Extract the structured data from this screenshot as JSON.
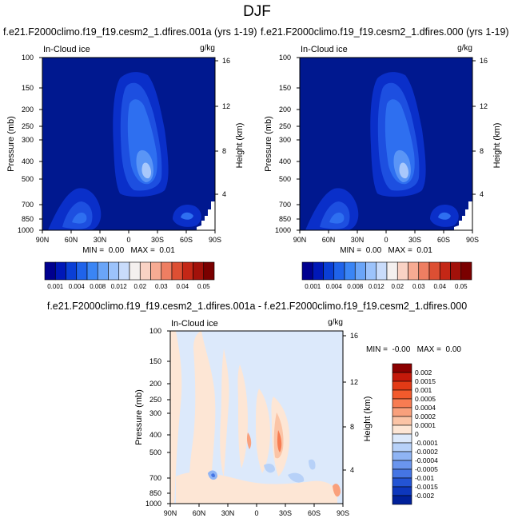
{
  "title": "DJF",
  "panels": [
    {
      "title": "f.e21.F2000climo.f19_f19.cesm2_1.dfires.001a (yrs 1-19)",
      "left_label": "In-Cloud ice",
      "units": "g/kg",
      "stats": "MIN =  0.00   MAX =  0.01"
    },
    {
      "title": "f.e21.F2000climo.f19_f19.cesm2_1.dfires.000 (yrs 1-19)",
      "left_label": "In-Cloud ice",
      "units": "g/kg",
      "stats": "MIN =  0.00   MAX =  0.01"
    },
    {
      "title": "f.e21.F2000climo.f19_f19.cesm2_1.dfires.001a - f.e21.F2000climo.f19_f19.cesm2_1.dfires.000",
      "left_label": "In-Cloud ice",
      "units": "g/kg",
      "stats": "MIN =  -0.00   MAX =  0.00"
    }
  ],
  "chart_data": [
    {
      "type": "heatmap",
      "title": "f.e21.F2000climo.f19_f19.cesm2_1.dfires.001a (yrs 1-19)",
      "ylabel": "Pressure (mb)",
      "ylabel_right": "Height (km)",
      "x_ticks": [
        "90N",
        "60N",
        "30N",
        "0",
        "30S",
        "60S",
        "90S"
      ],
      "y_ticks": [
        "100",
        "150",
        "200",
        "250",
        "300",
        "400",
        "500",
        "700",
        "850",
        "1000"
      ],
      "y_right_ticks": [
        "16",
        "12",
        "8",
        "4"
      ],
      "colorbar": {
        "levels": [
          "0.001",
          "0.004",
          "0.008",
          "0.012",
          "0.02",
          "0.03",
          "0.04",
          "0.05"
        ],
        "colors": [
          "#00008f",
          "#0018b8",
          "#0a3fd6",
          "#1f63ea",
          "#3a85f5",
          "#6aa5f8",
          "#9cc3fb",
          "#c9dcfb",
          "#f4f0ef",
          "#f9d2c4",
          "#f7ab93",
          "#ee7e62",
          "#dd4f33",
          "#c42716",
          "#a2110a",
          "#7a0000"
        ]
      },
      "min": 0.0,
      "max": 0.01
    },
    {
      "type": "heatmap",
      "title": "f.e21.F2000climo.f19_f19.cesm2_1.dfires.000 (yrs 1-19)",
      "ylabel": "Pressure (mb)",
      "ylabel_right": "Height (km)",
      "x_ticks": [
        "90N",
        "60N",
        "30N",
        "0",
        "30S",
        "60S",
        "90S"
      ],
      "y_ticks": [
        "100",
        "150",
        "200",
        "250",
        "300",
        "400",
        "500",
        "700",
        "850",
        "1000"
      ],
      "y_right_ticks": [
        "16",
        "12",
        "8",
        "4"
      ],
      "colorbar": {
        "levels": [
          "0.001",
          "0.004",
          "0.008",
          "0.012",
          "0.02",
          "0.03",
          "0.04",
          "0.05"
        ],
        "colors": [
          "#00008f",
          "#0018b8",
          "#0a3fd6",
          "#1f63ea",
          "#3a85f5",
          "#6aa5f8",
          "#9cc3fb",
          "#c9dcfb",
          "#f4f0ef",
          "#f9d2c4",
          "#f7ab93",
          "#ee7e62",
          "#dd4f33",
          "#c42716",
          "#a2110a",
          "#7a0000"
        ]
      },
      "min": 0.0,
      "max": 0.01
    },
    {
      "type": "heatmap",
      "title": "f.e21.F2000climo.f19_f19.cesm2_1.dfires.001a - f.e21.F2000climo.f19_f19.cesm2_1.dfires.000",
      "ylabel": "Pressure (mb)",
      "ylabel_right": "Height (km)",
      "x_ticks": [
        "90N",
        "60N",
        "30N",
        "0",
        "30S",
        "60S",
        "90S"
      ],
      "y_ticks": [
        "100",
        "150",
        "200",
        "250",
        "300",
        "400",
        "500",
        "700",
        "850",
        "1000"
      ],
      "y_right_ticks": [
        "16",
        "12",
        "8",
        "4"
      ],
      "colorbar": {
        "levels": [
          "0.002",
          "0.0015",
          "0.001",
          "0.0005",
          "0.0004",
          "0.0002",
          "0.0001",
          "0",
          "-0.0001",
          "-0.0002",
          "-0.0004",
          "-0.0005",
          "-0.001",
          "-0.0015",
          "-0.002"
        ],
        "colors": [
          "#8b0000",
          "#c4190a",
          "#e23a16",
          "#f25a2c",
          "#f77c52",
          "#f9a07c",
          "#fbc4a6",
          "#fde6d5",
          "#dce9fb",
          "#b7d1f8",
          "#8fb4f4",
          "#6a95ee",
          "#4575e4",
          "#2354d4",
          "#0d37bd",
          "#00209a"
        ]
      },
      "min": -0.0,
      "max": 0.0
    }
  ]
}
